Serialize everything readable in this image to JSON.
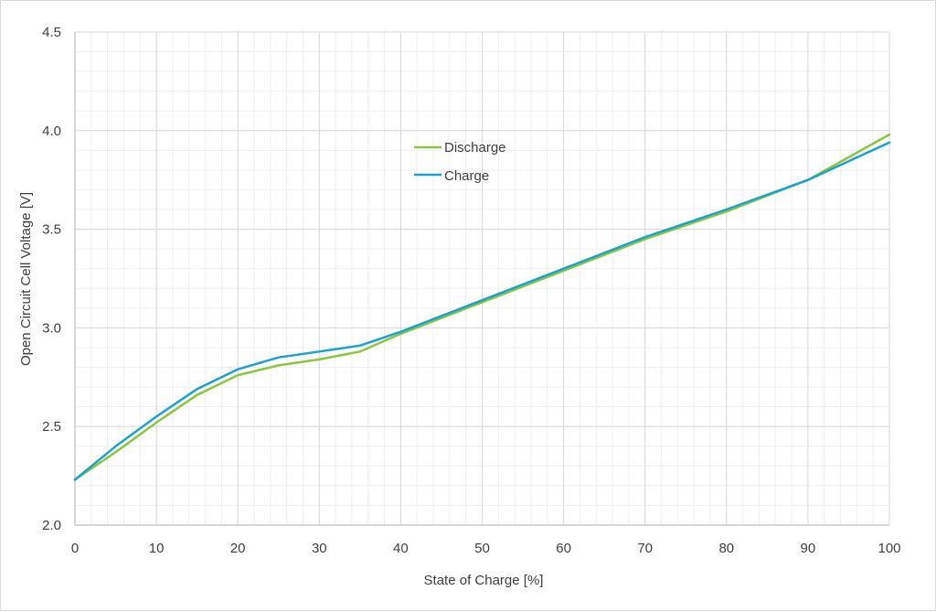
{
  "chart_data": {
    "type": "line",
    "title": "",
    "xlabel": "State of Charge [%]",
    "ylabel": "Open Circuit Cell Voltage [V]",
    "xlim": [
      0,
      100
    ],
    "ylim": [
      2.0,
      4.5
    ],
    "x_ticks": [
      "0",
      "10",
      "20",
      "30",
      "40",
      "50",
      "60",
      "70",
      "80",
      "90",
      "100"
    ],
    "y_ticks": [
      "2.0",
      "2.5",
      "3.0",
      "3.5",
      "4.0",
      "4.5"
    ],
    "grid": {
      "major": true,
      "minor": true
    },
    "legend_position": "upper-center (inside plot)",
    "x": [
      0,
      5,
      10,
      15,
      20,
      25,
      30,
      35,
      40,
      50,
      60,
      70,
      80,
      90,
      100
    ],
    "series": [
      {
        "name": "Discharge",
        "color": "#8cc63f",
        "values": [
          2.23,
          2.37,
          2.52,
          2.66,
          2.76,
          2.81,
          2.84,
          2.88,
          2.97,
          3.13,
          3.29,
          3.45,
          3.59,
          3.75,
          3.98
        ]
      },
      {
        "name": "Charge",
        "color": "#1aa3d1",
        "values": [
          2.23,
          2.4,
          2.55,
          2.69,
          2.79,
          2.85,
          2.88,
          2.91,
          2.98,
          3.14,
          3.3,
          3.46,
          3.6,
          3.75,
          3.94
        ]
      }
    ]
  },
  "legend": {
    "items": [
      {
        "label": "Discharge",
        "color": "#8cc63f"
      },
      {
        "label": "Charge",
        "color": "#1aa3d1"
      }
    ]
  }
}
